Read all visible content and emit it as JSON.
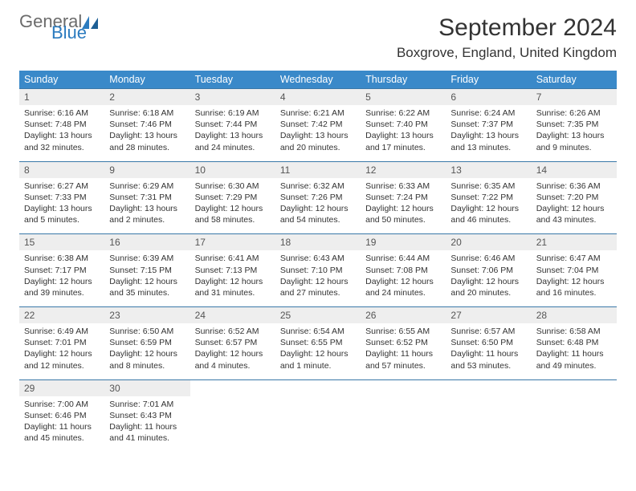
{
  "logo": {
    "part1": "General",
    "part2": "Blue"
  },
  "title": "September 2024",
  "location": "Boxgrove, England, United Kingdom",
  "colors": {
    "header_bg": "#3a89c9",
    "header_fg": "#ffffff",
    "daynum_bg": "#eeeeee",
    "rule": "#3a78a8",
    "logo_gray": "#6b6b6b",
    "logo_blue": "#2b7bbf"
  },
  "weekdays": [
    "Sunday",
    "Monday",
    "Tuesday",
    "Wednesday",
    "Thursday",
    "Friday",
    "Saturday"
  ],
  "weeks": [
    {
      "nums": [
        "1",
        "2",
        "3",
        "4",
        "5",
        "6",
        "7"
      ],
      "cells": [
        {
          "sunrise": "Sunrise: 6:16 AM",
          "sunset": "Sunset: 7:48 PM",
          "day1": "Daylight: 13 hours",
          "day2": "and 32 minutes."
        },
        {
          "sunrise": "Sunrise: 6:18 AM",
          "sunset": "Sunset: 7:46 PM",
          "day1": "Daylight: 13 hours",
          "day2": "and 28 minutes."
        },
        {
          "sunrise": "Sunrise: 6:19 AM",
          "sunset": "Sunset: 7:44 PM",
          "day1": "Daylight: 13 hours",
          "day2": "and 24 minutes."
        },
        {
          "sunrise": "Sunrise: 6:21 AM",
          "sunset": "Sunset: 7:42 PM",
          "day1": "Daylight: 13 hours",
          "day2": "and 20 minutes."
        },
        {
          "sunrise": "Sunrise: 6:22 AM",
          "sunset": "Sunset: 7:40 PM",
          "day1": "Daylight: 13 hours",
          "day2": "and 17 minutes."
        },
        {
          "sunrise": "Sunrise: 6:24 AM",
          "sunset": "Sunset: 7:37 PM",
          "day1": "Daylight: 13 hours",
          "day2": "and 13 minutes."
        },
        {
          "sunrise": "Sunrise: 6:26 AM",
          "sunset": "Sunset: 7:35 PM",
          "day1": "Daylight: 13 hours",
          "day2": "and 9 minutes."
        }
      ]
    },
    {
      "nums": [
        "8",
        "9",
        "10",
        "11",
        "12",
        "13",
        "14"
      ],
      "cells": [
        {
          "sunrise": "Sunrise: 6:27 AM",
          "sunset": "Sunset: 7:33 PM",
          "day1": "Daylight: 13 hours",
          "day2": "and 5 minutes."
        },
        {
          "sunrise": "Sunrise: 6:29 AM",
          "sunset": "Sunset: 7:31 PM",
          "day1": "Daylight: 13 hours",
          "day2": "and 2 minutes."
        },
        {
          "sunrise": "Sunrise: 6:30 AM",
          "sunset": "Sunset: 7:29 PM",
          "day1": "Daylight: 12 hours",
          "day2": "and 58 minutes."
        },
        {
          "sunrise": "Sunrise: 6:32 AM",
          "sunset": "Sunset: 7:26 PM",
          "day1": "Daylight: 12 hours",
          "day2": "and 54 minutes."
        },
        {
          "sunrise": "Sunrise: 6:33 AM",
          "sunset": "Sunset: 7:24 PM",
          "day1": "Daylight: 12 hours",
          "day2": "and 50 minutes."
        },
        {
          "sunrise": "Sunrise: 6:35 AM",
          "sunset": "Sunset: 7:22 PM",
          "day1": "Daylight: 12 hours",
          "day2": "and 46 minutes."
        },
        {
          "sunrise": "Sunrise: 6:36 AM",
          "sunset": "Sunset: 7:20 PM",
          "day1": "Daylight: 12 hours",
          "day2": "and 43 minutes."
        }
      ]
    },
    {
      "nums": [
        "15",
        "16",
        "17",
        "18",
        "19",
        "20",
        "21"
      ],
      "cells": [
        {
          "sunrise": "Sunrise: 6:38 AM",
          "sunset": "Sunset: 7:17 PM",
          "day1": "Daylight: 12 hours",
          "day2": "and 39 minutes."
        },
        {
          "sunrise": "Sunrise: 6:39 AM",
          "sunset": "Sunset: 7:15 PM",
          "day1": "Daylight: 12 hours",
          "day2": "and 35 minutes."
        },
        {
          "sunrise": "Sunrise: 6:41 AM",
          "sunset": "Sunset: 7:13 PM",
          "day1": "Daylight: 12 hours",
          "day2": "and 31 minutes."
        },
        {
          "sunrise": "Sunrise: 6:43 AM",
          "sunset": "Sunset: 7:10 PM",
          "day1": "Daylight: 12 hours",
          "day2": "and 27 minutes."
        },
        {
          "sunrise": "Sunrise: 6:44 AM",
          "sunset": "Sunset: 7:08 PM",
          "day1": "Daylight: 12 hours",
          "day2": "and 24 minutes."
        },
        {
          "sunrise": "Sunrise: 6:46 AM",
          "sunset": "Sunset: 7:06 PM",
          "day1": "Daylight: 12 hours",
          "day2": "and 20 minutes."
        },
        {
          "sunrise": "Sunrise: 6:47 AM",
          "sunset": "Sunset: 7:04 PM",
          "day1": "Daylight: 12 hours",
          "day2": "and 16 minutes."
        }
      ]
    },
    {
      "nums": [
        "22",
        "23",
        "24",
        "25",
        "26",
        "27",
        "28"
      ],
      "cells": [
        {
          "sunrise": "Sunrise: 6:49 AM",
          "sunset": "Sunset: 7:01 PM",
          "day1": "Daylight: 12 hours",
          "day2": "and 12 minutes."
        },
        {
          "sunrise": "Sunrise: 6:50 AM",
          "sunset": "Sunset: 6:59 PM",
          "day1": "Daylight: 12 hours",
          "day2": "and 8 minutes."
        },
        {
          "sunrise": "Sunrise: 6:52 AM",
          "sunset": "Sunset: 6:57 PM",
          "day1": "Daylight: 12 hours",
          "day2": "and 4 minutes."
        },
        {
          "sunrise": "Sunrise: 6:54 AM",
          "sunset": "Sunset: 6:55 PM",
          "day1": "Daylight: 12 hours",
          "day2": "and 1 minute."
        },
        {
          "sunrise": "Sunrise: 6:55 AM",
          "sunset": "Sunset: 6:52 PM",
          "day1": "Daylight: 11 hours",
          "day2": "and 57 minutes."
        },
        {
          "sunrise": "Sunrise: 6:57 AM",
          "sunset": "Sunset: 6:50 PM",
          "day1": "Daylight: 11 hours",
          "day2": "and 53 minutes."
        },
        {
          "sunrise": "Sunrise: 6:58 AM",
          "sunset": "Sunset: 6:48 PM",
          "day1": "Daylight: 11 hours",
          "day2": "and 49 minutes."
        }
      ]
    },
    {
      "nums": [
        "29",
        "30",
        "",
        "",
        "",
        "",
        ""
      ],
      "cells": [
        {
          "sunrise": "Sunrise: 7:00 AM",
          "sunset": "Sunset: 6:46 PM",
          "day1": "Daylight: 11 hours",
          "day2": "and 45 minutes."
        },
        {
          "sunrise": "Sunrise: 7:01 AM",
          "sunset": "Sunset: 6:43 PM",
          "day1": "Daylight: 11 hours",
          "day2": "and 41 minutes."
        },
        null,
        null,
        null,
        null,
        null
      ]
    }
  ]
}
